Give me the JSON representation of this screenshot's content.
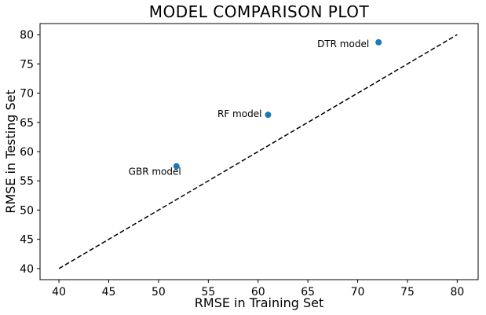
{
  "chart_data": {
    "type": "scatter",
    "title": "MODEL COMPARISON PLOT",
    "xlabel": "RMSE in Training Set",
    "ylabel": "RMSE in Testing Set",
    "xlim": [
      38.1,
      82.1
    ],
    "ylim": [
      38.1,
      81.9
    ],
    "xticks": [
      40,
      45,
      50,
      55,
      60,
      65,
      70,
      75,
      80
    ],
    "yticks": [
      40,
      45,
      50,
      55,
      60,
      65,
      70,
      75,
      80
    ],
    "grid": false,
    "point_color": "#1f77b4",
    "points": [
      {
        "label": "DTR model",
        "x": 72.1,
        "y": 78.7
      },
      {
        "label": "RF model",
        "x": 61.0,
        "y": 66.3
      },
      {
        "label": "GBR model",
        "x": 51.8,
        "y": 57.5
      }
    ],
    "reference_line": {
      "style": "dashed",
      "color": "#000000",
      "x": [
        40,
        80
      ],
      "y": [
        40,
        80
      ]
    }
  }
}
